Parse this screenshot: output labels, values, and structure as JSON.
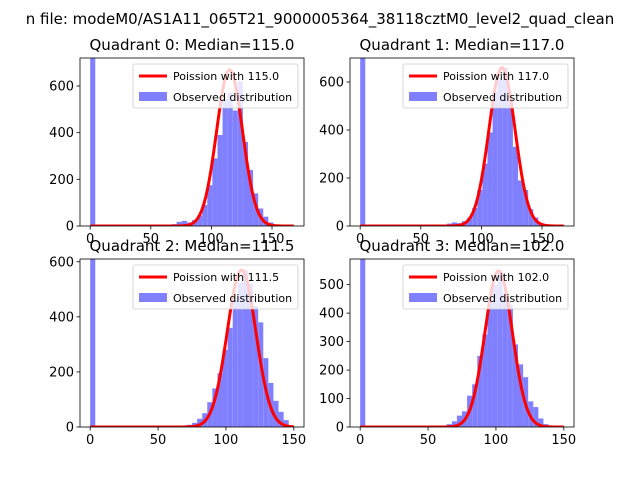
{
  "figure_title": "n file: modeM0/AS1A11_065T21_9000005364_38118cztM0_level2_quad_clean",
  "colors": {
    "poisson": "#ff0000",
    "histogram": "#8080ff",
    "axis": "#000000"
  },
  "chart_data": [
    {
      "type": "bar",
      "title": "Quadrant 0: Median=115.0",
      "median": 115.0,
      "xlim": [
        -8.4,
        176.4
      ],
      "ylim": [
        0,
        720
      ],
      "xticks": [
        0,
        50,
        100,
        150
      ],
      "yticks": [
        0,
        200,
        400,
        600
      ],
      "legend": [
        "Poission with 115.0",
        "Observed distribution"
      ],
      "legend_placement": "top-right",
      "bin_width": 4.2,
      "bins": [
        0,
        63,
        67.2,
        71.4,
        75.6,
        79.8,
        84,
        88.2,
        92.4,
        96.6,
        100.8,
        105,
        109.2,
        113.4,
        117.6,
        121.8,
        126,
        130.2,
        134.4,
        138.6,
        142.8,
        147,
        151.2
      ],
      "values": [
        720,
        3,
        8,
        18,
        22,
        15,
        25,
        45,
        90,
        175,
        290,
        390,
        540,
        570,
        495,
        620,
        360,
        240,
        140,
        75,
        40,
        15,
        5
      ],
      "poisson": {
        "mean": 115.0,
        "sigma": 10.724,
        "x_range": [
          0,
          168
        ]
      }
    },
    {
      "type": "bar",
      "title": "Quadrant 1: Median=117.0",
      "median": 117.0,
      "xlim": [
        -8.4,
        176.4
      ],
      "ylim": [
        0,
        700
      ],
      "xticks": [
        0,
        50,
        100,
        150
      ],
      "yticks": [
        0,
        200,
        400,
        600
      ],
      "legend": [
        "Poission with 117.0",
        "Observed distribution"
      ],
      "legend_placement": "top-right",
      "bin_width": 4.2,
      "bins": [
        0,
        63,
        67.2,
        71.4,
        75.6,
        79.8,
        84,
        88.2,
        92.4,
        96.6,
        100.8,
        105,
        109.2,
        113.4,
        117.6,
        121.8,
        126,
        130.2,
        134.4,
        138.6,
        142.8,
        147,
        151.2
      ],
      "values": [
        700,
        3,
        5,
        10,
        15,
        12,
        20,
        35,
        75,
        150,
        260,
        390,
        560,
        610,
        660,
        520,
        330,
        190,
        150,
        70,
        35,
        12,
        4
      ],
      "poisson": {
        "mean": 117.0,
        "sigma": 10.817,
        "x_range": [
          0,
          168
        ]
      }
    },
    {
      "type": "bar",
      "title": "Quadrant 2: Median=111.5",
      "median": 111.5,
      "xlim": [
        -7.5,
        157.5
      ],
      "ylim": [
        0,
        610
      ],
      "xticks": [
        0,
        50,
        100,
        150
      ],
      "yticks": [
        0,
        200,
        400,
        600
      ],
      "legend": [
        "Poission with 111.5",
        "Observed distribution"
      ],
      "legend_placement": "top-right",
      "bin_width": 3.75,
      "bins": [
        0,
        67.5,
        71.25,
        75,
        78.75,
        82.5,
        86.25,
        90,
        93.75,
        97.5,
        101.25,
        105,
        108.75,
        112.5,
        116.25,
        120,
        123.75,
        127.5,
        131.25,
        135,
        138.75,
        142.5,
        146.25
      ],
      "values": [
        610,
        5,
        8,
        15,
        30,
        50,
        90,
        140,
        195,
        280,
        360,
        460,
        525,
        570,
        520,
        440,
        380,
        250,
        160,
        95,
        55,
        25,
        5
      ],
      "poisson": {
        "mean": 111.5,
        "sigma": 10.559,
        "x_range": [
          0,
          150
        ]
      }
    },
    {
      "type": "bar",
      "title": "Quadrant 3: Median=102.0",
      "median": 102.0,
      "xlim": [
        -7.5,
        157.5
      ],
      "ylim": [
        0,
        590
      ],
      "xticks": [
        0,
        50,
        100,
        150
      ],
      "yticks": [
        0,
        100,
        200,
        300,
        400,
        500
      ],
      "legend": [
        "Poission with 102.0",
        "Observed distribution"
      ],
      "legend_placement": "top-right",
      "bin_width": 3.75,
      "bins": [
        0,
        56.25,
        60,
        63.75,
        67.5,
        71.25,
        75,
        78.75,
        82.5,
        86.25,
        90,
        93.75,
        97.5,
        101.25,
        105,
        108.75,
        112.5,
        116.25,
        120,
        123.75,
        127.5,
        131.25,
        135
      ],
      "values": [
        590,
        5,
        5,
        10,
        20,
        40,
        55,
        110,
        150,
        250,
        325,
        440,
        500,
        545,
        470,
        430,
        290,
        220,
        175,
        90,
        70,
        30,
        10
      ],
      "poisson": {
        "mean": 102.0,
        "sigma": 10.1,
        "x_range": [
          0,
          150
        ]
      }
    }
  ]
}
